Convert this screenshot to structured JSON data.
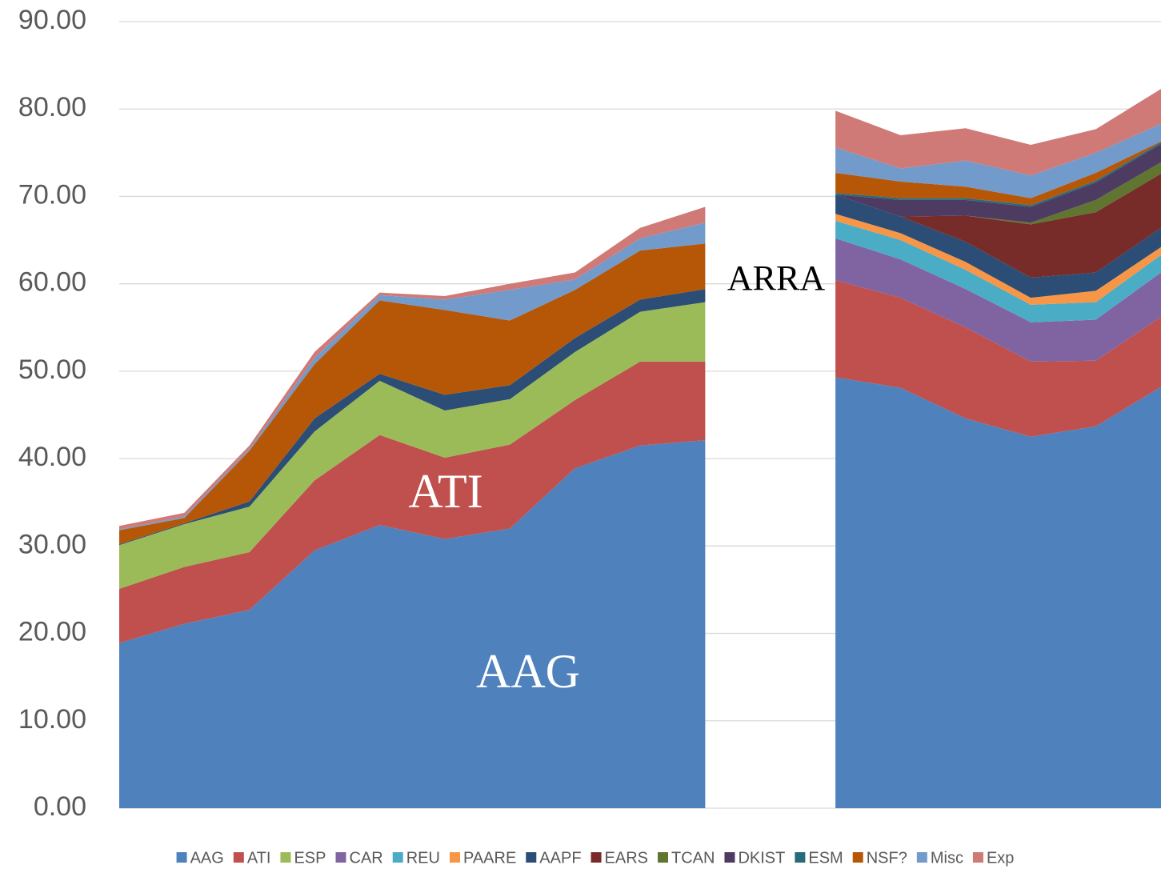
{
  "chart_data": {
    "type": "stacked_area",
    "categories": [
      null,
      null,
      null,
      null,
      null,
      null,
      null,
      null,
      null,
      null,
      null,
      null,
      null,
      null,
      null,
      null,
      null
    ],
    "ylim": [
      0,
      90
    ],
    "yticks": [
      {
        "value": 0,
        "label": "0.00"
      },
      {
        "value": 10,
        "label": "10.00"
      },
      {
        "value": 20,
        "label": "20.00"
      },
      {
        "value": 30,
        "label": "30.00"
      },
      {
        "value": 40,
        "label": "40.00"
      },
      {
        "value": 50,
        "label": "50.00"
      },
      {
        "value": 60,
        "label": "60.00"
      },
      {
        "value": 70,
        "label": "70.00"
      },
      {
        "value": 80,
        "label": "80.00"
      },
      {
        "value": 90,
        "label": "90.00"
      }
    ],
    "grid": true,
    "legend": "bottom",
    "annotations": [
      {
        "text": "ATI",
        "color": "#ffffff"
      },
      {
        "text": "AAG",
        "color": "#ffffff"
      },
      {
        "text": "ARRA",
        "color": "#000000"
      }
    ],
    "series": [
      {
        "name": "AAG",
        "color": "#4f81bd",
        "values": [
          18.9,
          21.1,
          22.7,
          29.5,
          32.4,
          30.8,
          32.0,
          38.9,
          41.5,
          42.1,
          null,
          49.3,
          48.1,
          44.6,
          42.5,
          43.7,
          48.2
        ]
      },
      {
        "name": "ATI",
        "color": "#c0504d",
        "values": [
          6.2,
          6.5,
          6.6,
          8.0,
          10.3,
          9.3,
          9.6,
          7.8,
          9.6,
          9.0,
          null,
          11.1,
          10.3,
          10.4,
          8.6,
          7.5,
          8.0
        ]
      },
      {
        "name": "ESP",
        "color": "#9bbb59",
        "values": [
          5.0,
          4.9,
          5.2,
          5.6,
          6.2,
          5.4,
          5.2,
          5.5,
          5.7,
          6.8,
          null,
          0,
          0,
          0,
          0,
          0,
          0
        ]
      },
      {
        "name": "CAR",
        "color": "#8064a2",
        "values": [
          0,
          0,
          0,
          0,
          0,
          0,
          0,
          0,
          0,
          0,
          null,
          4.8,
          4.4,
          4.4,
          4.5,
          4.7,
          5.1
        ]
      },
      {
        "name": "REU",
        "color": "#4bacc6",
        "values": [
          0,
          0,
          0,
          0,
          0,
          0,
          0,
          0,
          0,
          0,
          null,
          2.0,
          2.2,
          2.2,
          2.0,
          2.0,
          2.0
        ]
      },
      {
        "name": "PAARE",
        "color": "#f79646",
        "values": [
          0,
          0,
          0,
          0,
          0,
          0,
          0,
          0,
          0,
          0,
          null,
          0.8,
          0.8,
          0.9,
          0.8,
          1.3,
          0.9
        ]
      },
      {
        "name": "AAPF",
        "color": "#2c4d75",
        "values": [
          0.1,
          0.1,
          0.6,
          1.5,
          0.8,
          1.8,
          1.6,
          1.6,
          1.4,
          1.5,
          null,
          2.2,
          1.9,
          2.3,
          2.3,
          2.1,
          2.2
        ]
      },
      {
        "name": "EARS",
        "color": "#772c2a",
        "values": [
          0,
          0,
          0,
          0,
          0,
          0,
          0,
          0,
          0,
          0,
          null,
          0,
          0,
          3.0,
          6.1,
          6.9,
          6.2
        ]
      },
      {
        "name": "TCAN",
        "color": "#5f7530",
        "values": [
          0,
          0,
          0,
          0,
          0,
          0,
          0,
          0,
          0,
          0,
          null,
          0,
          0,
          0,
          0.2,
          1.4,
          1.3
        ]
      },
      {
        "name": "DKIST",
        "color": "#4d3b62",
        "values": [
          0,
          0,
          0,
          0,
          0,
          0,
          0,
          0,
          0,
          0,
          null,
          0,
          1.9,
          1.8,
          1.8,
          2.0,
          2.1
        ]
      },
      {
        "name": "ESM",
        "color": "#276a7c",
        "values": [
          0,
          0,
          0,
          0,
          0,
          0,
          0,
          0,
          0,
          0,
          null,
          0.2,
          0.2,
          0.2,
          0.2,
          0.2,
          0.2
        ]
      },
      {
        "name": "NSF?",
        "color": "#b65708",
        "values": [
          1.6,
          0.6,
          5.8,
          6.2,
          8.4,
          9.7,
          7.4,
          5.5,
          5.6,
          5.2,
          null,
          2.3,
          1.9,
          1.3,
          0.8,
          0.9,
          0.1
        ]
      },
      {
        "name": "Misc",
        "color": "#729aca",
        "values": [
          0.1,
          0.2,
          0.2,
          0.7,
          0.6,
          1.2,
          3.5,
          1.2,
          1.4,
          2.4,
          null,
          2.9,
          1.5,
          3.0,
          2.6,
          2.3,
          2.0
        ]
      },
      {
        "name": "Exp",
        "color": "#d07a77",
        "values": [
          0.4,
          0.4,
          0.4,
          0.7,
          0.3,
          0.4,
          0.7,
          0.8,
          1.2,
          1.8,
          null,
          4.2,
          3.8,
          3.7,
          3.5,
          2.7,
          4.0
        ]
      }
    ]
  }
}
